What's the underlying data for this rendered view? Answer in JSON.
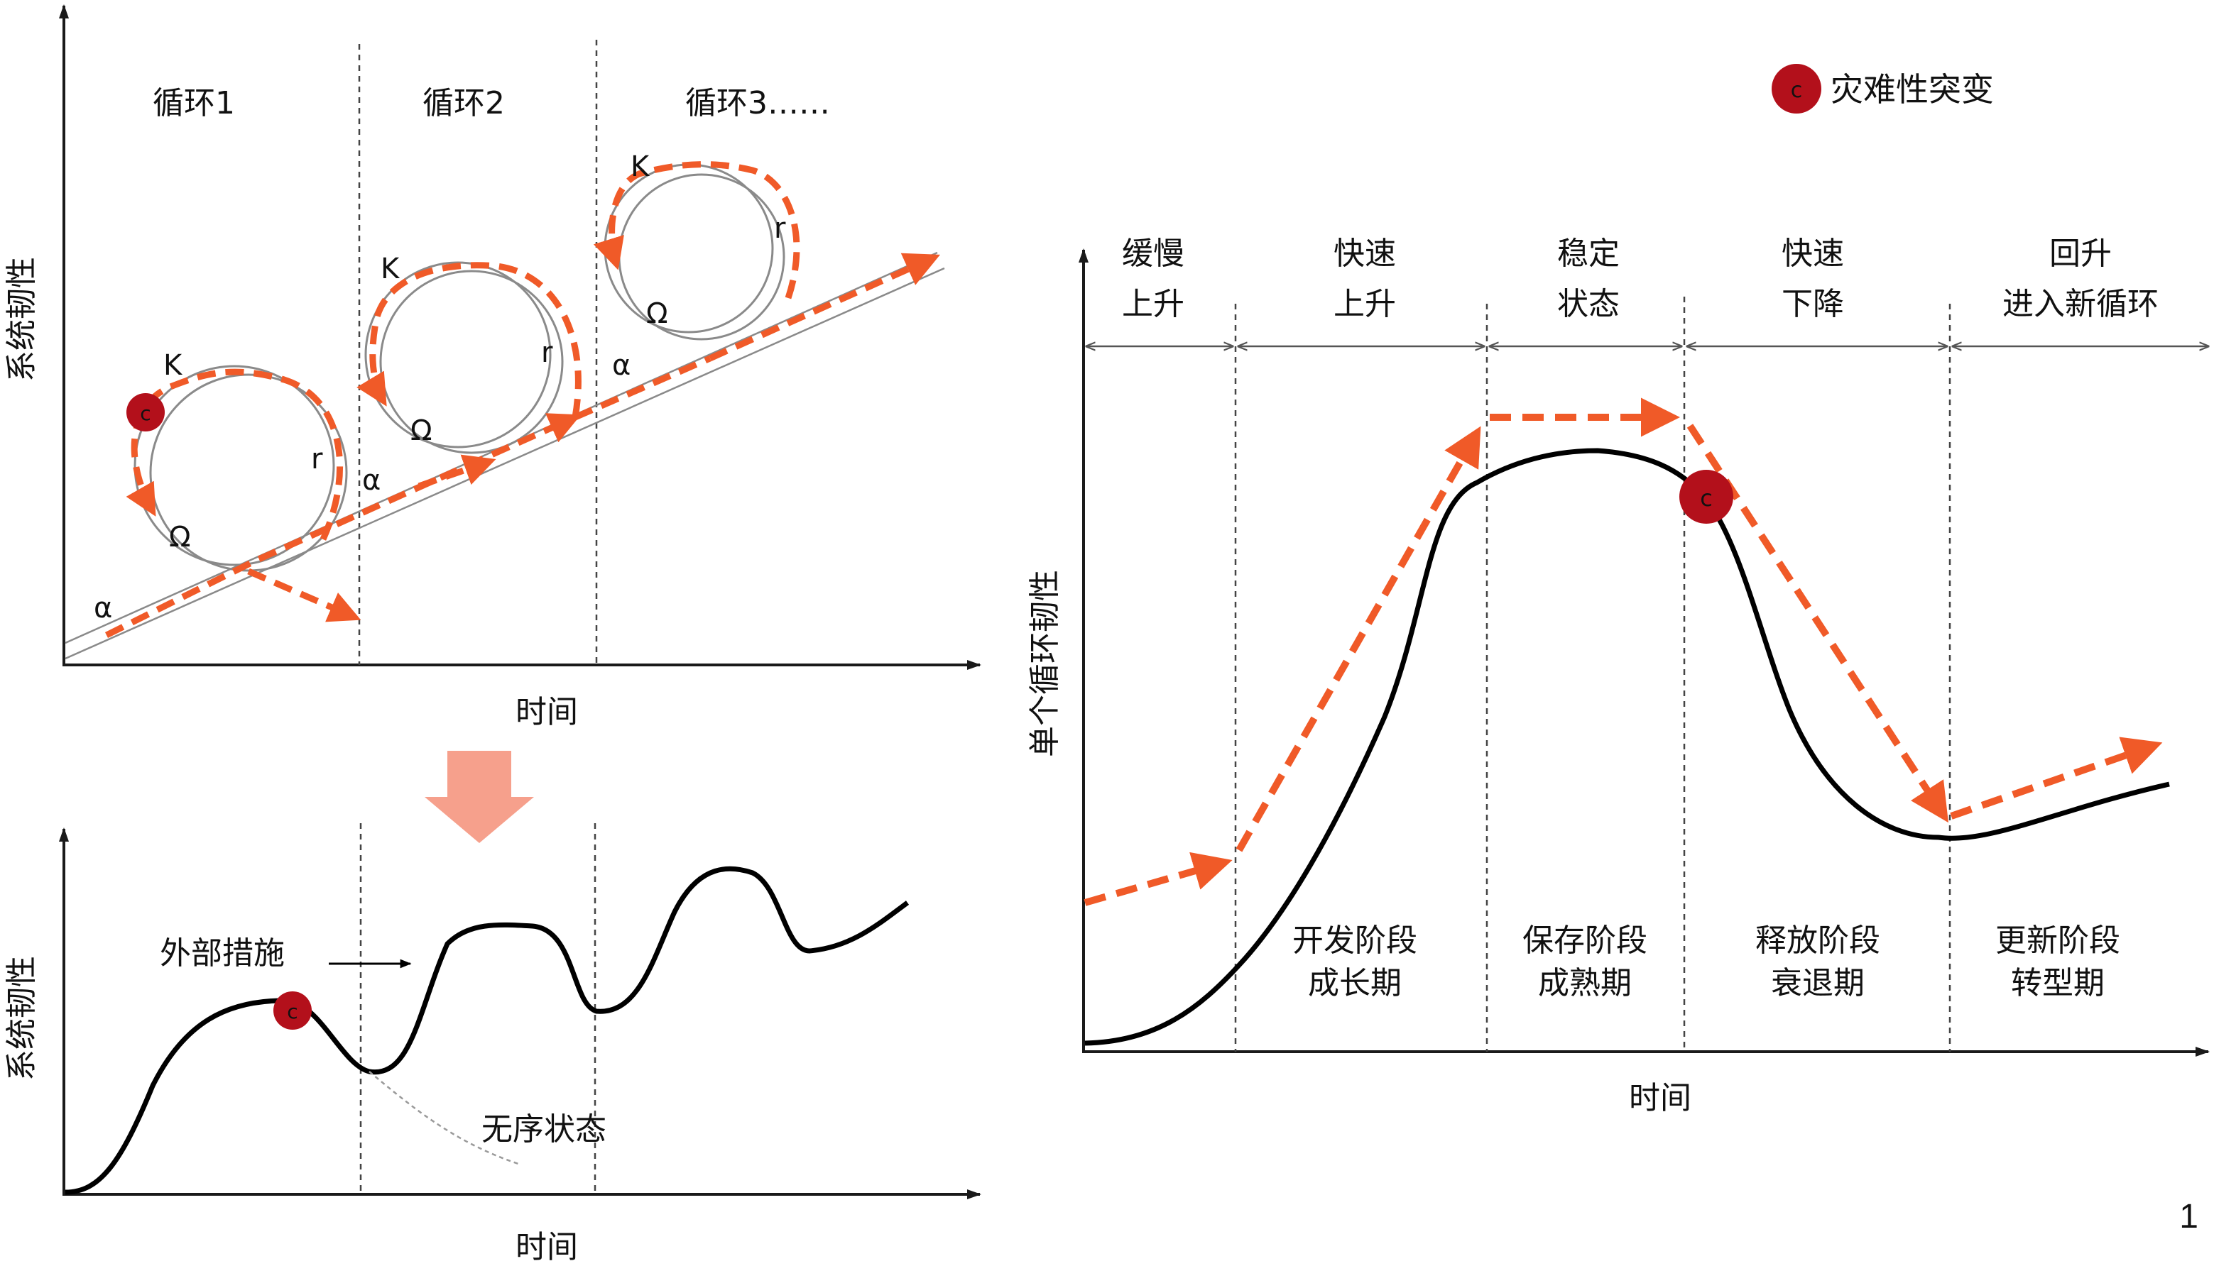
{
  "colors": {
    "axis": "#1a1a1a",
    "curve": "#000000",
    "dashed_arrow": "#f05a28",
    "catastrophe_fill": "#b3101b",
    "big_down_arrow": "#f6a08c",
    "ring": "#8a8a8a"
  },
  "top_left": {
    "y_label": "系统韧性",
    "x_label": "时间",
    "cycles": [
      "循环1",
      "循环2",
      "循环3……"
    ],
    "loop_labels": {
      "k": "K",
      "r": "r",
      "omega": "Ω",
      "alpha": "α"
    }
  },
  "bottom_left": {
    "y_label": "系统韧性",
    "x_label": "时间",
    "external_measures": "外部措施",
    "disorder_state": "无序状态"
  },
  "right": {
    "legend_label": "灾难性突变",
    "catastrophe_letter": "c",
    "y_label": "单个循环韧性",
    "x_label": "时间",
    "phases_top": [
      {
        "line1": "缓慢",
        "line2": "上升"
      },
      {
        "line1": "快速",
        "line2": "上升"
      },
      {
        "line1": "稳定",
        "line2": "状态"
      },
      {
        "line1": "快速",
        "line2": "下降"
      },
      {
        "line1": "回升",
        "line2": "进入新循环"
      }
    ],
    "phases_bottom": [
      {
        "line1": "开发阶段",
        "line2": "成长期"
      },
      {
        "line1": "保存阶段",
        "line2": "成熟期"
      },
      {
        "line1": "释放阶段",
        "line2": "衰退期"
      },
      {
        "line1": "更新阶段",
        "line2": "转型期"
      }
    ]
  },
  "page_number": "1"
}
